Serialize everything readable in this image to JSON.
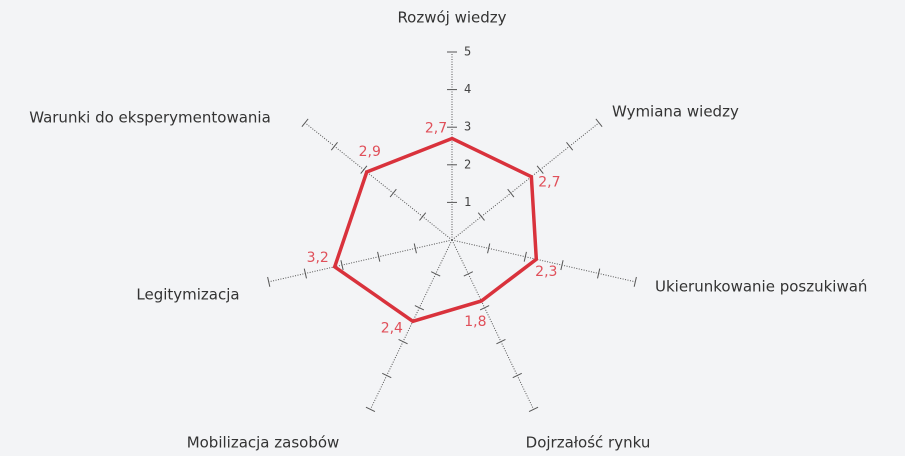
{
  "chart_data": {
    "type": "radar",
    "categories": [
      "Rozwój wiedzy",
      "Wymiana wiedzy",
      "Ukierunkowanie poszukiwań",
      "Dojrzałość rynku",
      "Mobilizacja zasobów",
      "Legitymizacja",
      "Warunki do eksperymentowania"
    ],
    "values": [
      2.7,
      2.7,
      2.3,
      1.8,
      2.4,
      3.2,
      2.9
    ],
    "value_labels": [
      "2,7",
      "2,7",
      "2,3",
      "1,8",
      "2,4",
      "3,2",
      "2,9"
    ],
    "color": "#d9323c",
    "rlim": [
      0,
      5
    ],
    "rticks": [
      1,
      2,
      3,
      4,
      5
    ]
  }
}
